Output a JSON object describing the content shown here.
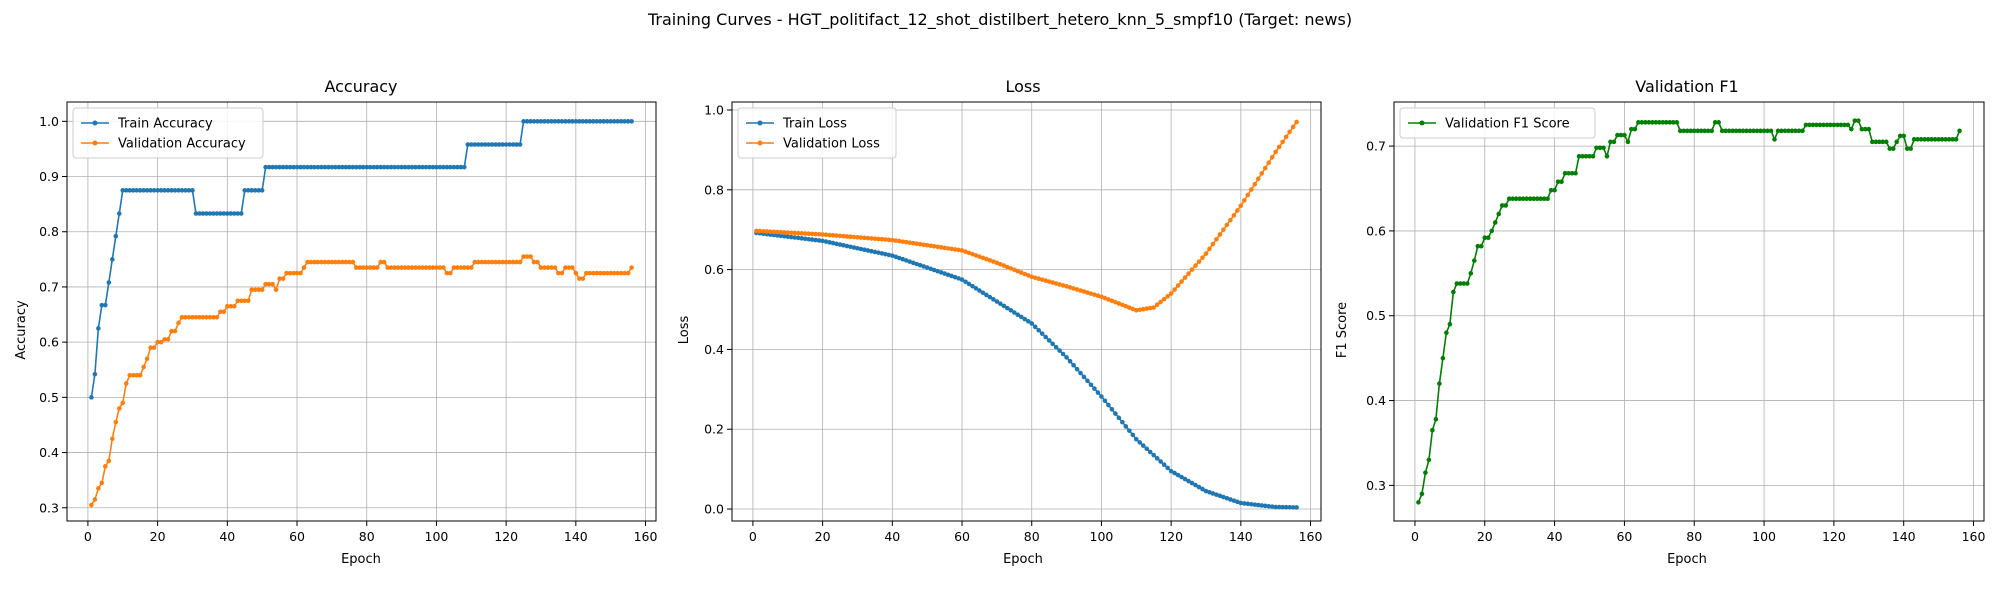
{
  "figure": {
    "title": "Training Curves - HGT_politifact_12_shot_distilbert_hetero_knn_5_smpf10 (Target: news)"
  },
  "chart_data": [
    {
      "type": "line",
      "title": "Accuracy",
      "xlabel": "Epoch",
      "ylabel": "Accuracy",
      "xlim": [
        -6,
        163
      ],
      "ylim": [
        0.276,
        1.035
      ],
      "xticks": [
        0,
        20,
        40,
        60,
        80,
        100,
        120,
        140,
        160
      ],
      "yticks": [
        0.3,
        0.4,
        0.5,
        0.6,
        0.7,
        0.8,
        0.9,
        1.0
      ],
      "ytick_labels": [
        "0.3",
        "0.4",
        "0.5",
        "0.6",
        "0.7",
        "0.8",
        "0.9",
        "1.0"
      ],
      "grid": true,
      "legend": "upper left",
      "x_start": 1,
      "x_end": 156,
      "series": [
        {
          "name": "Train Accuracy",
          "color": "#1f77b4",
          "marker": "point",
          "knots": [
            [
              1,
              0.5
            ],
            [
              2,
              0.542
            ],
            [
              3,
              0.625
            ],
            [
              4,
              0.667
            ],
            [
              5,
              0.667
            ],
            [
              6,
              0.708
            ],
            [
              7,
              0.75
            ],
            [
              8,
              0.792
            ],
            [
              9,
              0.833
            ],
            [
              10,
              0.875
            ],
            [
              30,
              0.875
            ],
            [
              31,
              0.833
            ],
            [
              44,
              0.833
            ],
            [
              45,
              0.875
            ],
            [
              50,
              0.875
            ],
            [
              51,
              0.917
            ],
            [
              108,
              0.917
            ],
            [
              109,
              0.958
            ],
            [
              124,
              0.958
            ],
            [
              125,
              1.0
            ],
            [
              156,
              1.0
            ]
          ],
          "interp": "step"
        },
        {
          "name": "Validation Accuracy",
          "color": "#ff7f0e",
          "marker": "point",
          "knots": [
            [
              1,
              0.305
            ],
            [
              2,
              0.315
            ],
            [
              3,
              0.335
            ],
            [
              4,
              0.345
            ],
            [
              5,
              0.375
            ],
            [
              6,
              0.385
            ],
            [
              7,
              0.425
            ],
            [
              8,
              0.455
            ],
            [
              9,
              0.48
            ],
            [
              10,
              0.49
            ],
            [
              11,
              0.525
            ],
            [
              12,
              0.54
            ],
            [
              15,
              0.54
            ],
            [
              16,
              0.555
            ],
            [
              17,
              0.57
            ],
            [
              18,
              0.59
            ],
            [
              20,
              0.6
            ],
            [
              22,
              0.605
            ],
            [
              24,
              0.62
            ],
            [
              26,
              0.635
            ],
            [
              27,
              0.645
            ],
            [
              37,
              0.645
            ],
            [
              38,
              0.655
            ],
            [
              40,
              0.665
            ],
            [
              43,
              0.675
            ],
            [
              47,
              0.695
            ],
            [
              51,
              0.705
            ],
            [
              54,
              0.695
            ],
            [
              55,
              0.715
            ],
            [
              57,
              0.725
            ],
            [
              62,
              0.735
            ],
            [
              63,
              0.745
            ],
            [
              77,
              0.735
            ],
            [
              84,
              0.745
            ],
            [
              86,
              0.735
            ],
            [
              103,
              0.725
            ],
            [
              105,
              0.735
            ],
            [
              111,
              0.745
            ],
            [
              125,
              0.755
            ],
            [
              128,
              0.745
            ],
            [
              130,
              0.735
            ],
            [
              135,
              0.725
            ],
            [
              137,
              0.735
            ],
            [
              140,
              0.725
            ],
            [
              141,
              0.715
            ],
            [
              143,
              0.725
            ],
            [
              155,
              0.725
            ],
            [
              156,
              0.735
            ]
          ],
          "interp": "step"
        }
      ]
    },
    {
      "type": "line",
      "title": "Loss",
      "xlabel": "Epoch",
      "ylabel": "Loss",
      "xlim": [
        -6,
        163
      ],
      "ylim": [
        -0.03,
        1.02
      ],
      "xticks": [
        0,
        20,
        40,
        60,
        80,
        100,
        120,
        140,
        160
      ],
      "yticks": [
        0.0,
        0.2,
        0.4,
        0.6,
        0.8,
        1.0
      ],
      "ytick_labels": [
        "0.0",
        "0.2",
        "0.4",
        "0.6",
        "0.8",
        "1.0"
      ],
      "grid": true,
      "legend": "upper left",
      "x_start": 1,
      "x_end": 156,
      "series": [
        {
          "name": "Train Loss",
          "color": "#1f77b4",
          "marker": "point",
          "knots": [
            [
              1,
              0.692
            ],
            [
              20,
              0.672
            ],
            [
              40,
              0.635
            ],
            [
              60,
              0.575
            ],
            [
              80,
              0.465
            ],
            [
              90,
              0.38
            ],
            [
              100,
              0.282
            ],
            [
              110,
              0.175
            ],
            [
              120,
              0.095
            ],
            [
              130,
              0.045
            ],
            [
              140,
              0.015
            ],
            [
              150,
              0.005
            ],
            [
              156,
              0.004
            ]
          ],
          "interp": "linear"
        },
        {
          "name": "Validation Loss",
          "color": "#ff7f0e",
          "marker": "point",
          "knots": [
            [
              1,
              0.697
            ],
            [
              20,
              0.688
            ],
            [
              40,
              0.674
            ],
            [
              60,
              0.648
            ],
            [
              70,
              0.617
            ],
            [
              80,
              0.582
            ],
            [
              90,
              0.558
            ],
            [
              100,
              0.532
            ],
            [
              105,
              0.515
            ],
            [
              110,
              0.498
            ],
            [
              115,
              0.505
            ],
            [
              120,
              0.54
            ],
            [
              130,
              0.64
            ],
            [
              140,
              0.76
            ],
            [
              150,
              0.895
            ],
            [
              156,
              0.97
            ]
          ],
          "interp": "linear"
        }
      ]
    },
    {
      "type": "line",
      "title": "Validation F1",
      "xlabel": "Epoch",
      "ylabel": "F1 Score",
      "xlim": [
        -6,
        163
      ],
      "ylim": [
        0.258,
        0.752
      ],
      "xticks": [
        0,
        20,
        40,
        60,
        80,
        100,
        120,
        140,
        160
      ],
      "yticks": [
        0.3,
        0.4,
        0.5,
        0.6,
        0.7
      ],
      "ytick_labels": [
        "0.3",
        "0.4",
        "0.5",
        "0.6",
        "0.7"
      ],
      "grid": true,
      "legend": "upper left",
      "x_start": 1,
      "x_end": 156,
      "series": [
        {
          "name": "Validation F1 Score",
          "color": "#008000",
          "marker": "point",
          "knots": [
            [
              1,
              0.28
            ],
            [
              2,
              0.29
            ],
            [
              3,
              0.315
            ],
            [
              4,
              0.33
            ],
            [
              5,
              0.365
            ],
            [
              6,
              0.378
            ],
            [
              7,
              0.42
            ],
            [
              8,
              0.45
            ],
            [
              9,
              0.48
            ],
            [
              10,
              0.49
            ],
            [
              11,
              0.528
            ],
            [
              12,
              0.538
            ],
            [
              15,
              0.538
            ],
            [
              16,
              0.55
            ],
            [
              17,
              0.565
            ],
            [
              18,
              0.582
            ],
            [
              20,
              0.592
            ],
            [
              22,
              0.6
            ],
            [
              23,
              0.61
            ],
            [
              24,
              0.62
            ],
            [
              25,
              0.63
            ],
            [
              27,
              0.638
            ],
            [
              38,
              0.638
            ],
            [
              39,
              0.648
            ],
            [
              41,
              0.658
            ],
            [
              43,
              0.668
            ],
            [
              47,
              0.688
            ],
            [
              52,
              0.698
            ],
            [
              55,
              0.688
            ],
            [
              56,
              0.705
            ],
            [
              58,
              0.713
            ],
            [
              61,
              0.705
            ],
            [
              62,
              0.72
            ],
            [
              64,
              0.728
            ],
            [
              76,
              0.718
            ],
            [
              86,
              0.728
            ],
            [
              88,
              0.718
            ],
            [
              103,
              0.708
            ],
            [
              104,
              0.718
            ],
            [
              112,
              0.725
            ],
            [
              125,
              0.72
            ],
            [
              126,
              0.73
            ],
            [
              128,
              0.72
            ],
            [
              131,
              0.705
            ],
            [
              136,
              0.697
            ],
            [
              138,
              0.705
            ],
            [
              139,
              0.712
            ],
            [
              141,
              0.697
            ],
            [
              143,
              0.708
            ],
            [
              155,
              0.708
            ],
            [
              156,
              0.718
            ]
          ],
          "interp": "step"
        }
      ]
    }
  ]
}
